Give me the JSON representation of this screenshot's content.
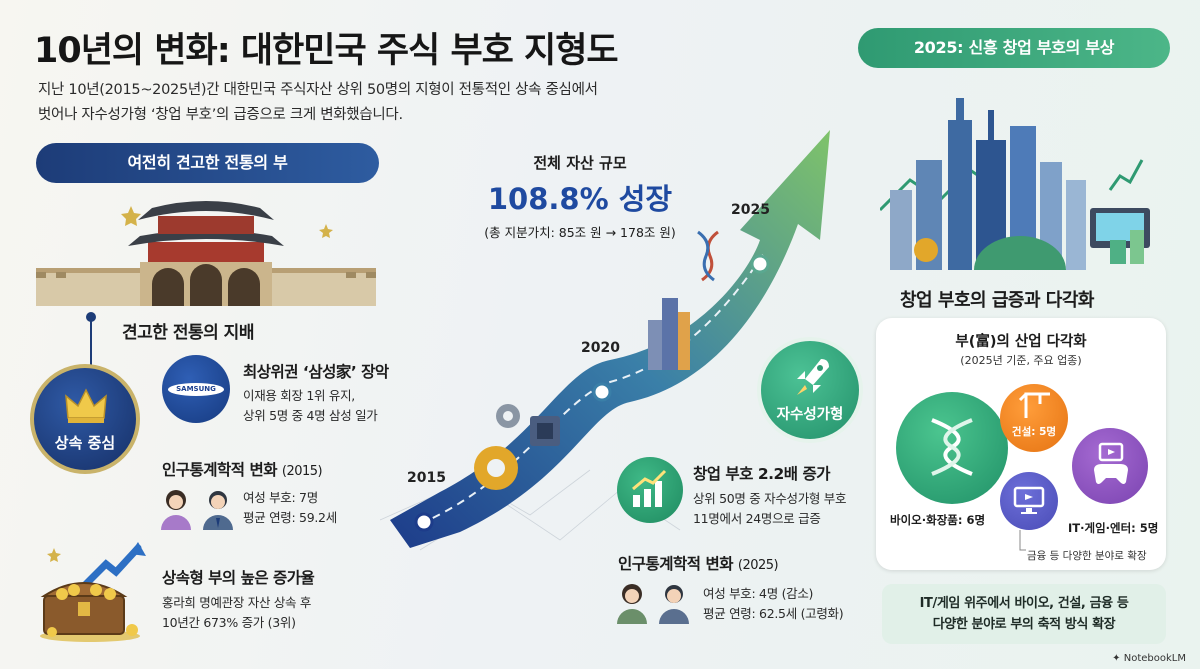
{
  "title": "10년의 변화: 대한민국 주식 부호 지형도",
  "subtitle_line1": "지난 10년(2015~2025년)간 대한민국 주식자산 상위 50명의 지형이 전통적인 상속 중심에서",
  "subtitle_line2": "벗어나 자수성가형 ‘창업 부호’의 급증으로 크게 변화했습니다.",
  "left": {
    "banner": "여전히 견고한 전통의 부",
    "dominance_heading": "견고한 전통의 지배",
    "inheritance_circle": "상속 중심",
    "samsung_logo_text": "SAMSUNG",
    "samsung": {
      "heading": "최상위권 ‘삼성家’ 장악",
      "line1": "이재용 회장 1위 유지,",
      "line2": "상위 5명 중 4명 삼성 일가"
    },
    "demographics": {
      "heading": "인구통계학적 변화",
      "year": "(2015)",
      "line1": "여성 부호: 7명",
      "line2": "평균 연령: 59.2세"
    },
    "growth": {
      "heading": "상속형 부의 높은 증가율",
      "line1": "홍라희 명예관장 자산 상속 후",
      "line2": "10년간 673% 증가 (3위)"
    }
  },
  "center": {
    "label": "전체 자산 규모",
    "growth": "108.8% 성장",
    "sub": "(총 지분가치: 85조 원 → 178조 원)",
    "years": [
      "2015",
      "2020",
      "2025"
    ],
    "self_made_circle": "자수성가형",
    "founder": {
      "heading": "창업 부호 2.2배 증가",
      "line1": "상위 50명 중 자수성가형 부호",
      "line2": "11명에서 24명으로 급증"
    },
    "demographics": {
      "heading": "인구통계학적 변화",
      "year": "(2025)",
      "line1": "여성 부호: 4명 (감소)",
      "line2": "평균 연령: 62.5세 (고령화)"
    }
  },
  "right": {
    "banner": "2025: 신흥 창업 부호의 부상",
    "heading": "창업 부호의 급증과 다각화",
    "panel_title": "부(富)의 산업 다각화",
    "panel_sub": "(2025년 기준, 주요 업종)",
    "bio": "바이오·화장품: 6명",
    "construction": "건설: 5명",
    "it": "IT·게임·엔터: 5명",
    "finance_note": "금융 등 다양한 분야로 확장",
    "bottom_line1": "IT/게임 위주에서 바이오, 건설, 금융 등",
    "bottom_line2": "다양한 분야로 부의 축적 방식 확장"
  },
  "footer": "NotebookLM",
  "colors": {
    "navy": "#1d3c78",
    "green": "#2f9a72",
    "orange": "#e57312",
    "purple": "#7a43b0"
  }
}
